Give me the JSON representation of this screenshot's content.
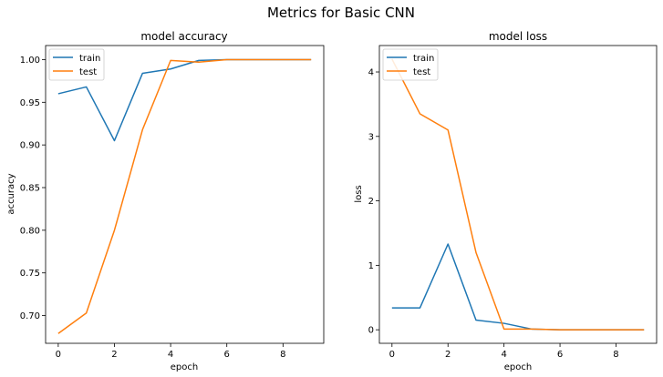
{
  "figure": {
    "title": "Metrics for Basic CNN"
  },
  "chart_data": [
    {
      "type": "line",
      "title": "model accuracy",
      "xlabel": "epoch",
      "ylabel": "accuracy",
      "x": [
        0,
        1,
        2,
        3,
        4,
        5,
        6,
        7,
        8,
        9
      ],
      "xlim": [
        -0.45,
        9.45
      ],
      "ylim": [
        0.6675,
        1.0165
      ],
      "xticks": [
        0,
        2,
        4,
        6,
        8
      ],
      "yticks": [
        0.7,
        0.75,
        0.8,
        0.85,
        0.9,
        0.95,
        1.0
      ],
      "ytick_labels": [
        "0.70",
        "0.75",
        "0.80",
        "0.85",
        "0.90",
        "0.95",
        "1.00"
      ],
      "legend": {
        "position": "upper-left"
      },
      "series": [
        {
          "name": "train",
          "color": "#1f77b4",
          "values": [
            0.96,
            0.968,
            0.905,
            0.984,
            0.989,
            0.999,
            1.0,
            1.0,
            1.0,
            1.0
          ]
        },
        {
          "name": "test",
          "color": "#ff7f0e",
          "values": [
            0.679,
            0.703,
            0.8,
            0.918,
            0.999,
            0.997,
            1.0,
            1.0,
            1.0,
            1.0
          ]
        }
      ]
    },
    {
      "type": "line",
      "title": "model loss",
      "xlabel": "epoch",
      "ylabel": "loss",
      "x": [
        0,
        1,
        2,
        3,
        4,
        5,
        6,
        7,
        8,
        9
      ],
      "xlim": [
        -0.45,
        9.45
      ],
      "ylim": [
        -0.21,
        4.41
      ],
      "xticks": [
        0,
        2,
        4,
        6,
        8
      ],
      "yticks": [
        0,
        1,
        2,
        3,
        4
      ],
      "ytick_labels": [
        "0",
        "1",
        "2",
        "3",
        "4"
      ],
      "legend": {
        "position": "upper-left"
      },
      "series": [
        {
          "name": "train",
          "color": "#1f77b4",
          "values": [
            0.34,
            0.34,
            1.33,
            0.15,
            0.1,
            0.01,
            0.0,
            0.0,
            0.0,
            0.0
          ]
        },
        {
          "name": "test",
          "color": "#ff7f0e",
          "values": [
            4.2,
            3.35,
            3.1,
            1.2,
            0.01,
            0.01,
            0.0,
            0.0,
            0.0,
            0.0
          ]
        }
      ]
    }
  ]
}
